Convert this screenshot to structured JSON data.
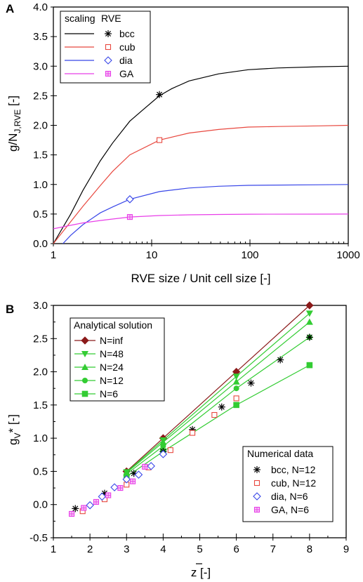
{
  "chart_data": [
    {
      "panel_label": "A",
      "type": "line",
      "x_scale": "log",
      "xlabel": "RVE size / Unit cell size [-]",
      "ylabel_main": "g/N",
      "ylabel_sub": "J,RVE",
      "ylabel_tail": " [-]",
      "xlim": [
        1,
        1000
      ],
      "ylim": [
        0.0,
        4.0
      ],
      "x_ticks": [
        1,
        10,
        100,
        1000
      ],
      "y_ticks": [
        "0.0",
        "0.5",
        "1.0",
        "1.5",
        "2.0",
        "2.5",
        "3.0",
        "3.5",
        "4.0"
      ],
      "legend": {
        "position": "top-left",
        "col1_header": "scaling",
        "col2_header": "RVE"
      },
      "series": [
        {
          "name": "bcc",
          "color": "#000000",
          "marker": "asterisk",
          "x": [
            1.0,
            1.5,
            2,
            3,
            4,
            6,
            8,
            12,
            16,
            24,
            48,
            96,
            192,
            500,
            1000
          ],
          "y": [
            0.0,
            0.5,
            0.9,
            1.4,
            1.7,
            2.07,
            2.25,
            2.5,
            2.62,
            2.75,
            2.87,
            2.94,
            2.97,
            2.99,
            3.0
          ],
          "marker_points": [
            {
              "x": 12,
              "y": 2.52
            }
          ]
        },
        {
          "name": "cub",
          "color": "#e8483f",
          "marker": "square",
          "x": [
            1.0,
            1.5,
            2,
            3,
            4,
            6,
            12,
            24,
            48,
            96,
            192,
            500,
            1000
          ],
          "y": [
            0.0,
            0.37,
            0.63,
            0.98,
            1.22,
            1.5,
            1.75,
            1.87,
            1.93,
            1.97,
            1.98,
            1.99,
            2.0
          ],
          "marker_points": [
            {
              "x": 12,
              "y": 1.75
            }
          ]
        },
        {
          "name": "dia",
          "color": "#3846e8",
          "marker": "diamond",
          "x": [
            1.25,
            1.5,
            2,
            3,
            4,
            6,
            12,
            24,
            48,
            96,
            500,
            1000
          ],
          "y": [
            0.0,
            0.14,
            0.32,
            0.52,
            0.62,
            0.75,
            0.88,
            0.94,
            0.97,
            0.985,
            0.995,
            1.0
          ],
          "marker_points": [
            {
              "x": 6,
              "y": 0.75
            }
          ]
        },
        {
          "name": "GA",
          "color": "#e83ee8",
          "marker": "boxplus",
          "x": [
            1,
            1.5,
            2,
            3,
            4,
            6,
            12,
            24,
            48,
            100,
            500,
            1000
          ],
          "y": [
            0.25,
            0.31,
            0.35,
            0.39,
            0.415,
            0.45,
            0.475,
            0.487,
            0.493,
            0.497,
            0.499,
            0.5
          ],
          "marker_points": [
            {
              "x": 6,
              "y": 0.45
            }
          ]
        }
      ]
    },
    {
      "panel_label": "B",
      "type": "scatter",
      "xlabel": "z [-]",
      "xlabel_overbar": true,
      "ylabel_main": "g",
      "ylabel_sub": "V",
      "ylabel_tail": "* [-]",
      "xlim": [
        1,
        9
      ],
      "ylim": [
        -0.5,
        3.0
      ],
      "x_ticks": [
        "1",
        "2",
        "3",
        "4",
        "5",
        "6",
        "7",
        "8",
        "9"
      ],
      "y_ticks": [
        "-0.5",
        "0.0",
        "0.5",
        "1.0",
        "1.5",
        "2.0",
        "2.5",
        "3.0"
      ],
      "legend_analytical": {
        "position": "top-left",
        "title": "Analytical solution",
        "entries": [
          "N=inf",
          "N=48",
          "N=24",
          "N=12",
          "N=6"
        ]
      },
      "legend_numerical": {
        "position": "bottom-right",
        "title": "Numerical data",
        "entries": [
          "bcc, N=12",
          "cub, N=12",
          "dia,  N=6",
          "GA,  N=6"
        ]
      },
      "analytical_series": [
        {
          "name": "N=inf",
          "color": "#8b1a1a",
          "marker": "diamond-filled",
          "x": [
            3,
            4,
            6,
            8
          ],
          "y": [
            0.5,
            1.0,
            2.0,
            3.0
          ]
        },
        {
          "name": "N=48",
          "color": "#33cc33",
          "marker": "triangle-down",
          "x": [
            3,
            4,
            6,
            8
          ],
          "y": [
            0.49,
            0.97,
            1.93,
            2.88
          ]
        },
        {
          "name": "N=24",
          "color": "#33cc33",
          "marker": "triangle-up",
          "x": [
            3,
            4,
            6,
            8
          ],
          "y": [
            0.48,
            0.94,
            1.85,
            2.75
          ]
        },
        {
          "name": "N=12",
          "color": "#33cc33",
          "marker": "circle",
          "x": [
            3,
            4,
            6,
            8
          ],
          "y": [
            0.46,
            0.88,
            1.75,
            2.52
          ]
        },
        {
          "name": "N=6",
          "color": "#33cc33",
          "marker": "square-filled",
          "x": [
            3,
            4,
            6,
            8
          ],
          "y": [
            0.42,
            0.8,
            1.5,
            2.1
          ]
        }
      ],
      "numerical_series": [
        {
          "name": "bcc, N=12",
          "color": "#000000",
          "marker": "asterisk",
          "x": [
            1.6,
            2.4,
            3.2,
            4.0,
            4.8,
            5.6,
            6.4,
            7.2,
            8.0
          ],
          "y": [
            -0.06,
            0.17,
            0.47,
            0.8,
            1.13,
            1.47,
            1.83,
            2.18,
            2.52
          ]
        },
        {
          "name": "cub, N=12",
          "color": "#e8483f",
          "marker": "square",
          "x": [
            1.8,
            2.4,
            3.0,
            3.6,
            4.2,
            4.8,
            5.4,
            6.0
          ],
          "y": [
            -0.1,
            0.08,
            0.3,
            0.56,
            0.82,
            1.08,
            1.35,
            1.6
          ]
        },
        {
          "name": "dia,  N=6",
          "color": "#3846e8",
          "marker": "diamond",
          "x": [
            2.0,
            2.33,
            2.67,
            3.0,
            3.33,
            3.67,
            4.0
          ],
          "y": [
            -0.01,
            0.12,
            0.26,
            0.38,
            0.45,
            0.58,
            0.76
          ]
        },
        {
          "name": "GA,  N=6",
          "color": "#e83ee8",
          "marker": "boxplus",
          "x": [
            1.5,
            1.83,
            2.17,
            2.5,
            2.83,
            3.17,
            3.5
          ],
          "y": [
            -0.14,
            -0.05,
            0.04,
            0.14,
            0.25,
            0.35,
            0.57
          ]
        }
      ]
    }
  ]
}
